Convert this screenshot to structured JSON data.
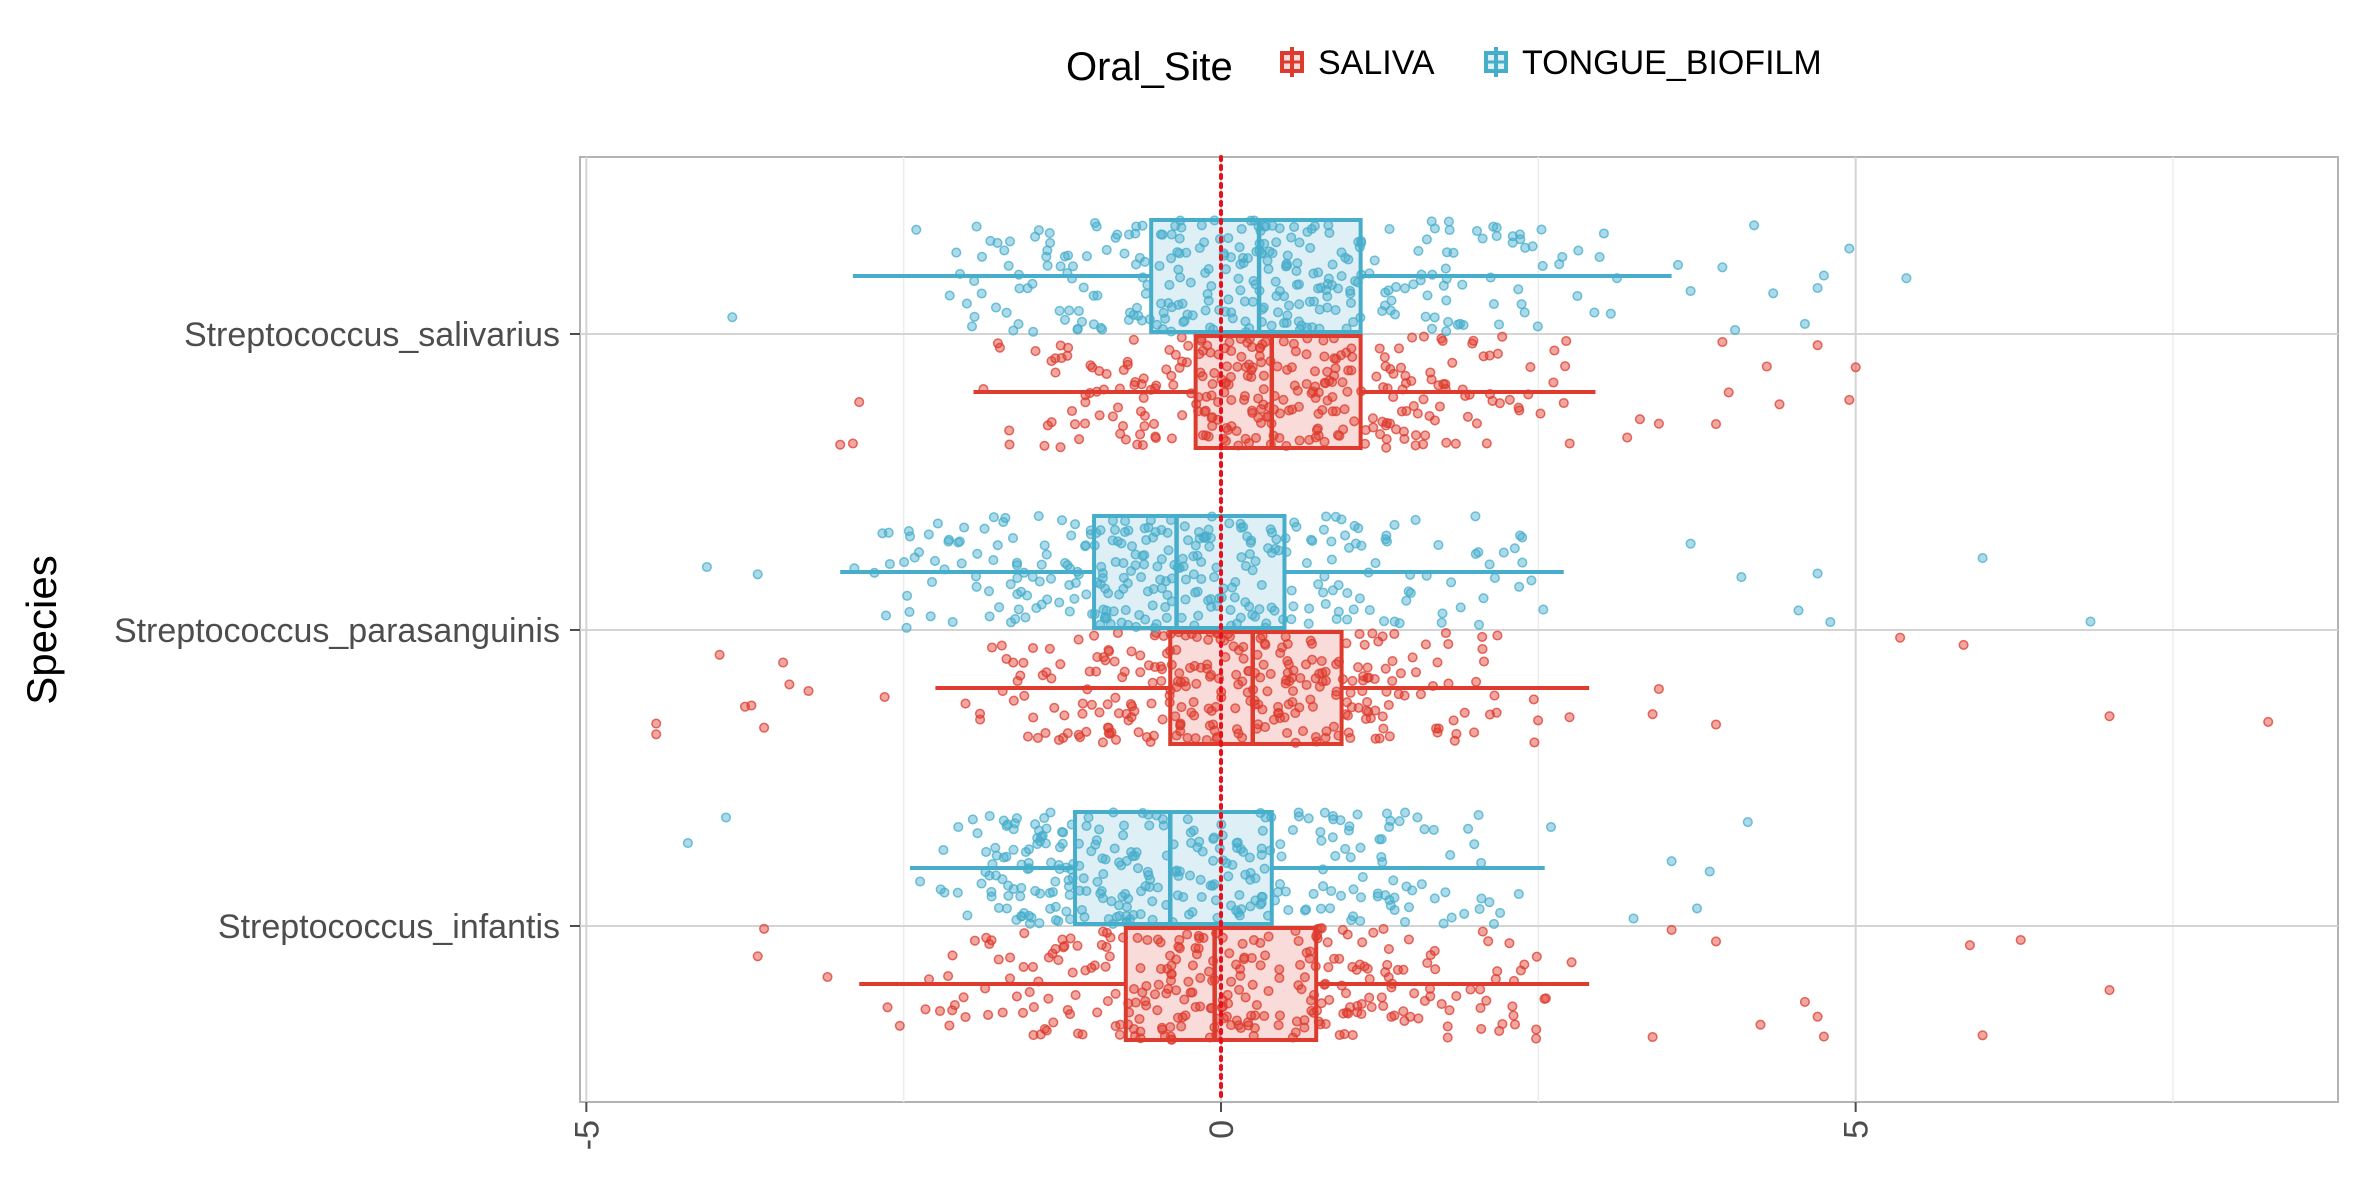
{
  "chart_data": {
    "type": "boxplot-jitter",
    "orientation": "horizontal",
    "title": "",
    "xlabel": "",
    "ylabel": "Species",
    "xlim": [
      -5.05,
      8.8
    ],
    "x_ticks": [
      -5,
      0,
      5
    ],
    "x_tick_labels": [
      "-5",
      "0",
      "5"
    ],
    "grid": true,
    "reference_line": {
      "x": 0,
      "style": "dotted",
      "color": "#e8101b"
    },
    "legend": {
      "title": "Oral_Site",
      "position": "top",
      "entries": [
        {
          "label": "SALIVA",
          "color": "#dd3b2e"
        },
        {
          "label": "TONGUE_BIOFILM",
          "color": "#46aecb"
        }
      ]
    },
    "categories": [
      "Streptococcus_salivarius",
      "Streptococcus_parasanguinis",
      "Streptococcus_infantis"
    ],
    "series": [
      {
        "name": "SALIVA",
        "color": "#dd3b2e",
        "boxes": [
          {
            "category": "Streptococcus_salivarius",
            "whisker_low": -1.95,
            "q1": -0.2,
            "median": 0.4,
            "q3": 1.1,
            "whisker_high": 2.95,
            "outliers": [
              -3.0,
              -2.9,
              -2.85,
              3.2,
              3.3,
              3.45,
              3.9,
              3.95,
              4.0,
              4.3,
              4.4,
              4.7,
              4.95,
              5.0
            ]
          },
          {
            "category": "Streptococcus_parasanguinis",
            "whisker_low": -2.25,
            "q1": -0.4,
            "median": 0.25,
            "q3": 0.95,
            "whisker_high": 2.9,
            "outliers": [
              -4.45,
              -4.45,
              -3.95,
              -3.75,
              -3.7,
              -3.6,
              -3.45,
              -3.4,
              -3.25,
              -2.65,
              3.45,
              3.4,
              3.9,
              5.35,
              5.85,
              7.0,
              8.25
            ]
          },
          {
            "category": "Streptococcus_infantis",
            "whisker_low": -2.85,
            "q1": -0.75,
            "median": -0.05,
            "q3": 0.75,
            "whisker_high": 2.9,
            "outliers": [
              -3.65,
              -3.6,
              -3.1,
              3.4,
              3.55,
              3.9,
              4.25,
              4.6,
              4.7,
              4.75,
              5.9,
              6.0,
              6.3,
              7.0
            ]
          }
        ]
      },
      {
        "name": "TONGUE_BIOFILM",
        "color": "#46aecb",
        "boxes": [
          {
            "category": "Streptococcus_salivarius",
            "whisker_low": -2.9,
            "q1": -0.55,
            "median": 0.3,
            "q3": 1.1,
            "whisker_high": 3.55,
            "outliers": [
              -3.85,
              3.6,
              3.7,
              3.95,
              4.05,
              4.2,
              4.35,
              4.6,
              4.7,
              4.75,
              4.95,
              5.4
            ]
          },
          {
            "category": "Streptococcus_parasanguinis",
            "whisker_low": -3.0,
            "q1": -1.0,
            "median": -0.35,
            "q3": 0.5,
            "whisker_high": 2.7,
            "outliers": [
              -4.05,
              -3.65,
              3.7,
              4.1,
              4.55,
              4.7,
              4.8,
              6.0,
              6.85
            ]
          },
          {
            "category": "Streptococcus_infantis",
            "whisker_low": -2.45,
            "q1": -1.15,
            "median": -0.4,
            "q3": 0.4,
            "whisker_high": 2.55,
            "outliers": [
              -4.2,
              -3.9,
              2.6,
              3.25,
              3.55,
              3.75,
              3.85,
              4.15
            ]
          }
        ]
      }
    ]
  }
}
